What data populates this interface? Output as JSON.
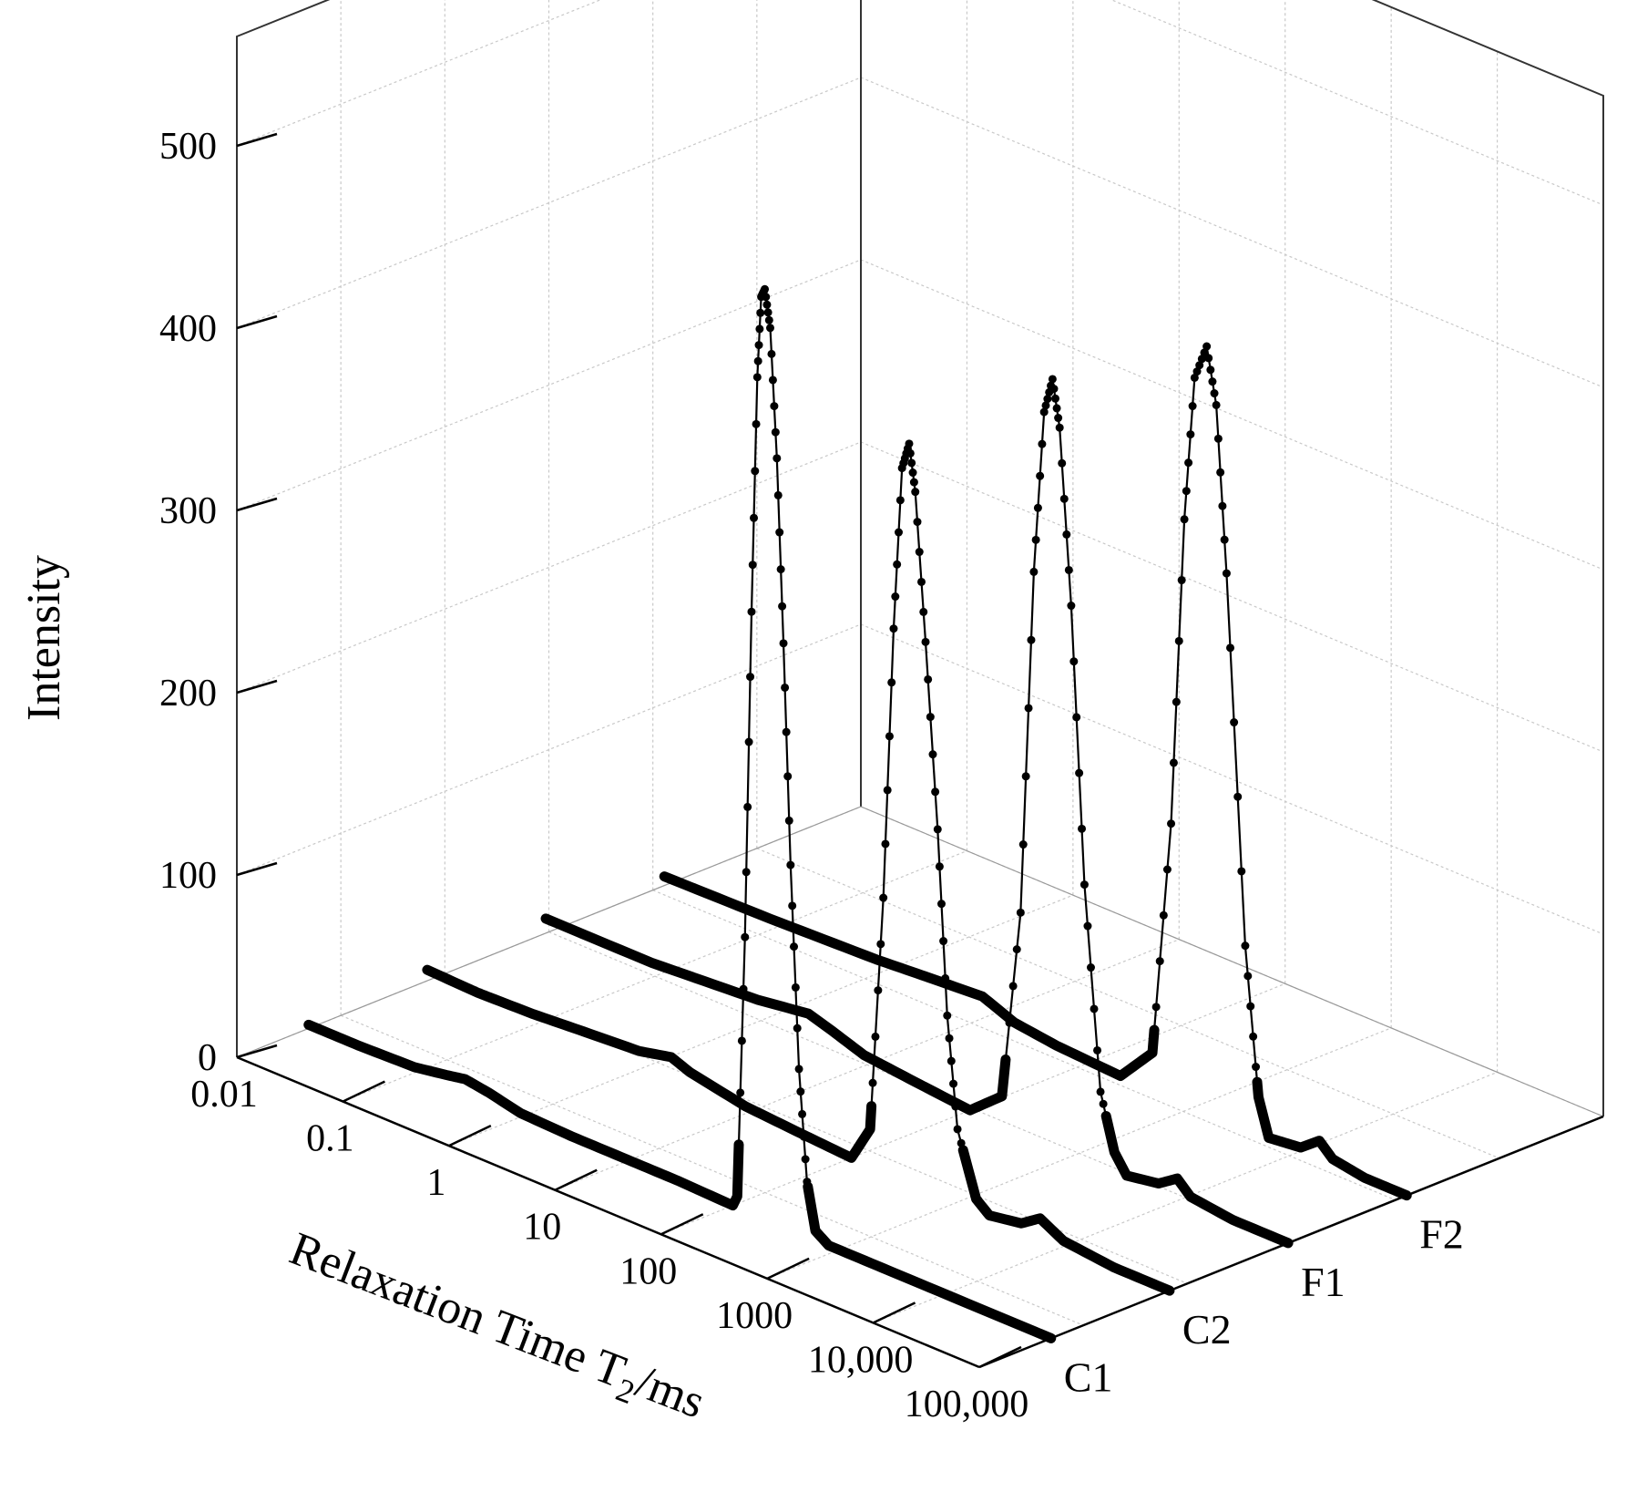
{
  "chart_data": {
    "type": "line",
    "title": "",
    "xlabel": "Relaxation Time T",
    "xlabel_subscript": "2",
    "xlabel_unit": "/ms",
    "ylabel": "Intensity",
    "x_scale": "log",
    "x_ticks": [
      "0.01",
      "0.1",
      "1",
      "10",
      "100",
      "1000",
      "10,000",
      "100,000"
    ],
    "z_ticks": [
      "0",
      "100",
      "200",
      "300",
      "400",
      "500"
    ],
    "xlim": [
      0.01,
      100000
    ],
    "zlim": [
      0,
      560
    ],
    "grid": true,
    "series": [
      {
        "name": "C1",
        "points": [
          [
            0.01,
            2
          ],
          [
            0.03,
            2
          ],
          [
            0.1,
            3
          ],
          [
            0.2,
            6
          ],
          [
            0.3,
            8
          ],
          [
            0.5,
            6
          ],
          [
            1,
            2
          ],
          [
            3,
            1
          ],
          [
            10,
            1
          ],
          [
            30,
            1
          ],
          [
            100,
            0
          ],
          [
            110,
            6
          ],
          [
            130,
            150
          ],
          [
            150,
            330
          ],
          [
            170,
            460
          ],
          [
            185,
            505
          ],
          [
            200,
            510
          ],
          [
            225,
            490
          ],
          [
            260,
            420
          ],
          [
            300,
            320
          ],
          [
            350,
            200
          ],
          [
            420,
            90
          ],
          [
            500,
            30
          ],
          [
            600,
            5
          ],
          [
            800,
            0
          ],
          [
            3000,
            0
          ],
          [
            100000,
            0
          ]
        ]
      },
      {
        "name": "C2",
        "points": [
          [
            0.01,
            6
          ],
          [
            0.03,
            5
          ],
          [
            0.1,
            6
          ],
          [
            0.3,
            8
          ],
          [
            1,
            10
          ],
          [
            2,
            14
          ],
          [
            3,
            10
          ],
          [
            10,
            4
          ],
          [
            30,
            2
          ],
          [
            100,
            0
          ],
          [
            150,
            20
          ],
          [
            200,
            150
          ],
          [
            250,
            300
          ],
          [
            300,
            390
          ],
          [
            350,
            405
          ],
          [
            400,
            380
          ],
          [
            500,
            300
          ],
          [
            650,
            200
          ],
          [
            800,
            100
          ],
          [
            1000,
            40
          ],
          [
            1500,
            6
          ],
          [
            2000,
            0
          ],
          [
            4000,
            3
          ],
          [
            6000,
            10
          ],
          [
            10000,
            3
          ],
          [
            30000,
            0
          ],
          [
            100000,
            0
          ]
        ]
      },
      {
        "name": "F1",
        "points": [
          [
            0.01,
            8
          ],
          [
            0.1,
            8
          ],
          [
            1,
            12
          ],
          [
            3,
            16
          ],
          [
            5,
            12
          ],
          [
            10,
            6
          ],
          [
            30,
            3
          ],
          [
            100,
            0
          ],
          [
            200,
            15
          ],
          [
            300,
            120
          ],
          [
            400,
            310
          ],
          [
            500,
            400
          ],
          [
            600,
            420
          ],
          [
            700,
            395
          ],
          [
            900,
            300
          ],
          [
            1200,
            150
          ],
          [
            1700,
            40
          ],
          [
            2300,
            10
          ],
          [
            3000,
            0
          ],
          [
            6000,
            3
          ],
          [
            9000,
            10
          ],
          [
            12000,
            3
          ],
          [
            30000,
            0
          ],
          [
            100000,
            0
          ]
        ]
      },
      {
        "name": "F2",
        "points": [
          [
            0.01,
            5
          ],
          [
            0.1,
            6
          ],
          [
            1,
            8
          ],
          [
            3,
            10
          ],
          [
            10,
            12
          ],
          [
            20,
            5
          ],
          [
            50,
            2
          ],
          [
            200,
            0
          ],
          [
            400,
            20
          ],
          [
            600,
            150
          ],
          [
            800,
            320
          ],
          [
            1000,
            400
          ],
          [
            1300,
            420
          ],
          [
            1600,
            390
          ],
          [
            2000,
            300
          ],
          [
            3000,
            100
          ],
          [
            4000,
            20
          ],
          [
            5000,
            0
          ],
          [
            10000,
            2
          ],
          [
            15000,
            10
          ],
          [
            20000,
            3
          ],
          [
            40000,
            0
          ],
          [
            100000,
            0
          ]
        ]
      }
    ]
  }
}
